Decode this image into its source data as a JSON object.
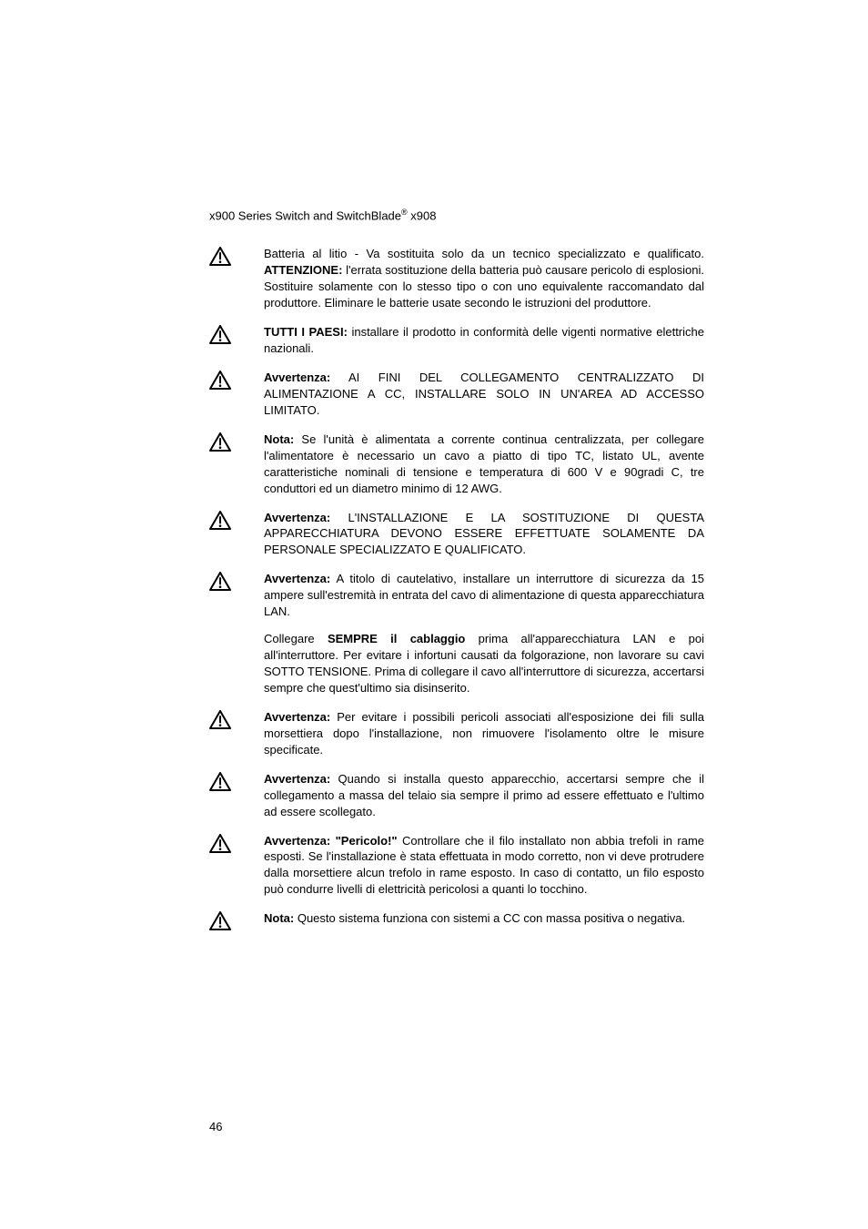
{
  "header": {
    "text_a": "x900 Series Switch and SwitchBlade",
    "reg": "®",
    "text_b": " x908"
  },
  "icon": {
    "stroke": "#000000",
    "fill_bg": "#ffffff"
  },
  "entries": [
    {
      "parts": [
        {
          "t": "Batteria al litio - Va sostituita solo da un tecnico specializzato e qualificato. "
        },
        {
          "t": "ATTENZIONE:",
          "b": true
        },
        {
          "t": " l'errata sostituzione della batteria può causare pericolo di esplosioni. Sostituire solamente con lo stesso tipo o con uno equivalente raccomandato dal produttore. Eliminare le batterie usate secondo le istruzioni del produttore."
        }
      ]
    },
    {
      "parts": [
        {
          "t": "TUTTI I PAESI:",
          "b": true
        },
        {
          "t": " installare il prodotto in conformità delle vigenti normative elettriche nazionali."
        }
      ]
    },
    {
      "parts": [
        {
          "t": "Avvertenza:",
          "b": true
        },
        {
          "t": " AI FINI DEL COLLEGAMENTO CENTRALIZZATO DI ALIMENTAZIONE A CC, INSTALLARE SOLO IN UN'AREA AD ACCESSO LIMITATO."
        }
      ]
    },
    {
      "parts": [
        {
          "t": "Nota:",
          "b": true
        },
        {
          "t": " Se l'unità è alimentata a corrente continua centralizzata, per collegare l'alimentatore è necessario un cavo a piatto di tipo TC, listato UL, avente caratteristiche nominali di tensione e temperatura di 600 V e 90gradi C, tre conduttori ed un diametro minimo di 12 AWG."
        }
      ]
    },
    {
      "parts": [
        {
          "t": "Avvertenza:",
          "b": true
        },
        {
          "t": " L'INSTALLAZIONE E LA SOSTITUZIONE DI QUESTA APPARECCHIATURA DEVONO ESSERE EFFETTUATE SOLAMENTE DA PERSONALE SPECIALIZZATO E QUALIFICATO."
        }
      ]
    },
    {
      "parts": [
        {
          "t": "Avvertenza:",
          "b": true
        },
        {
          "t": " A titolo di cautelativo, installare un interruttore di sicurezza da 15 ampere sull'estremità in entrata del cavo di alimentazione di questa apparecchiatura LAN."
        }
      ],
      "extra": [
        {
          "t": "Collegare "
        },
        {
          "t": "SEMPRE il cablaggio",
          "b": true
        },
        {
          "t": " prima all'apparecchiatura LAN e poi all'interruttore. Per evitare i infortuni causati da folgorazione, non lavorare su cavi SOTTO TENSIONE. Prima di collegare il cavo all'interruttore di sicurezza, accertarsi sempre che quest'ultimo sia disinserito."
        }
      ]
    },
    {
      "parts": [
        {
          "t": "Avvertenza:",
          "b": true
        },
        {
          "t": " Per evitare i possibili pericoli associati all'esposizione dei fili sulla morsettiera dopo l'installazione, non rimuovere l'isolamento oltre le misure specificate."
        }
      ]
    },
    {
      "parts": [
        {
          "t": "Avvertenza:",
          "b": true
        },
        {
          "t": " Quando si installa questo apparecchio, accertarsi sempre che il collegamento a massa del telaio sia sempre il primo ad essere effettuato e l'ultimo ad essere scollegato."
        }
      ]
    },
    {
      "parts": [
        {
          "t": "Avvertenza: \"Pericolo!\"",
          "b": true
        },
        {
          "t": " Controllare che il filo installato non abbia trefoli in rame esposti. Se l'installazione è stata effettuata in modo corretto, non vi deve protrudere dalla morsettiere alcun trefolo in rame esposto. In caso di contatto, un filo esposto può condurre livelli di elettricità pericolosi a quanti lo tocchino."
        }
      ]
    },
    {
      "parts": [
        {
          "t": "Nota:",
          "b": true
        },
        {
          "t": " Questo sistema funziona con sistemi a CC con massa positiva o negativa."
        }
      ]
    }
  ],
  "footer": {
    "page_number": "46"
  }
}
